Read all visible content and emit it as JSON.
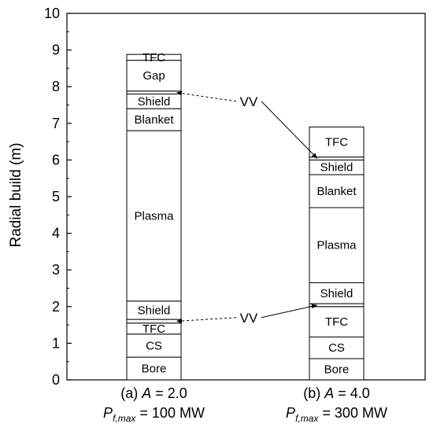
{
  "chart_data": {
    "type": "bar",
    "subtype": "stacked-radial-build",
    "ylabel": "Radial build (m)",
    "ylim": [
      0,
      10
    ],
    "yticks": [
      0,
      1,
      2,
      3,
      4,
      5,
      6,
      7,
      8,
      9,
      10
    ],
    "yticks_text": [
      "0",
      "1",
      "2",
      "3",
      "4",
      "5",
      "6",
      "7",
      "8",
      "9",
      "10"
    ],
    "grid": false,
    "categories": [
      {
        "line1": "(a) A = 2.0",
        "line1_parts": [
          "(a) ",
          "A",
          " = 2.0"
        ],
        "line2_parts": [
          "P",
          "f,max",
          " = 100 MW"
        ],
        "segments": [
          {
            "label": "Bore",
            "y0": 0.0,
            "y1": 0.62
          },
          {
            "label": "CS",
            "y0": 0.62,
            "y1": 1.25
          },
          {
            "label": "TFC",
            "y0": 1.25,
            "y1": 1.55
          },
          {
            "label": "",
            "y0": 1.55,
            "y1": 1.65
          },
          {
            "label": "Shield",
            "y0": 1.65,
            "y1": 2.15
          },
          {
            "label": "Plasma",
            "y0": 2.15,
            "y1": 6.8
          },
          {
            "label": "Blanket",
            "y0": 6.8,
            "y1": 7.4
          },
          {
            "label": "Shield",
            "y0": 7.4,
            "y1": 7.8
          },
          {
            "label": "",
            "y0": 7.8,
            "y1": 7.88
          },
          {
            "label": "Gap",
            "y0": 7.88,
            "y1": 8.72
          },
          {
            "label": "TFC",
            "y0": 8.72,
            "y1": 8.88
          }
        ]
      },
      {
        "line1": "(b) A = 4.0",
        "line1_parts": [
          "(b) ",
          "A",
          " = 4.0"
        ],
        "line2_parts": [
          "P",
          "f,max",
          " = 300 MW"
        ],
        "segments": [
          {
            "label": "Bore",
            "y0": 0.0,
            "y1": 0.58
          },
          {
            "label": "CS",
            "y0": 0.58,
            "y1": 1.17
          },
          {
            "label": "TFC",
            "y0": 1.17,
            "y1": 2.0
          },
          {
            "label": "",
            "y0": 2.0,
            "y1": 2.08
          },
          {
            "label": "Shield",
            "y0": 2.08,
            "y1": 2.65
          },
          {
            "label": "Plasma",
            "y0": 2.65,
            "y1": 4.7
          },
          {
            "label": "Blanket",
            "y0": 4.7,
            "y1": 5.6
          },
          {
            "label": "Shield",
            "y0": 5.6,
            "y1": 6.0
          },
          {
            "label": "",
            "y0": 6.0,
            "y1": 6.08
          },
          {
            "label": "TFC",
            "y0": 6.08,
            "y1": 6.9
          }
        ]
      }
    ],
    "annotations": [
      {
        "text": "VV",
        "y": 7.6,
        "targets": [
          {
            "bar": 0,
            "y": 7.84
          },
          {
            "bar": 1,
            "y": 6.04
          }
        ]
      },
      {
        "text": "VV",
        "y": 1.7,
        "targets": [
          {
            "bar": 0,
            "y": 1.6
          },
          {
            "bar": 1,
            "y": 2.04
          }
        ]
      }
    ]
  }
}
